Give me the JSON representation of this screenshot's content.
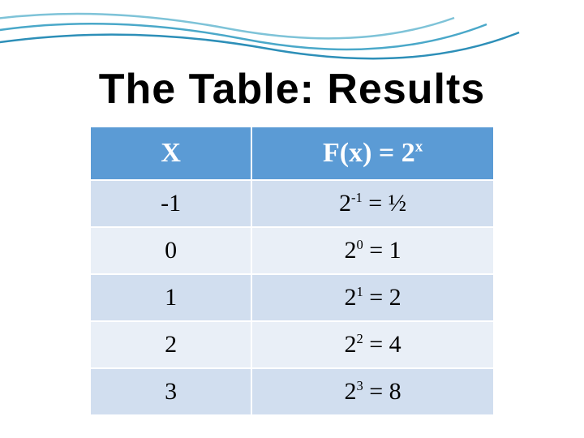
{
  "title": "The Table:  Results",
  "table": {
    "type": "table",
    "background_color": "#ffffff",
    "header_bg": "#5b9bd5",
    "header_fg": "#ffffff",
    "row_odd_bg": "#d1deef",
    "row_even_bg": "#e9eff7",
    "border_color": "#ffffff",
    "border_width": 2,
    "title_fontsize": 52,
    "header_fontsize": 34,
    "cell_fontsize": 30,
    "columns": [
      {
        "key": "X",
        "label": "X",
        "width_pct": 40
      },
      {
        "key": "Fx",
        "label_html": "F(x) = 2<sup>x</sup>",
        "width_pct": 60
      }
    ],
    "rows": [
      {
        "x": "-1",
        "fx_html": "2<sup>-1</sup> = ½"
      },
      {
        "x": "0",
        "fx_html": "2<sup>0</sup> = 1"
      },
      {
        "x": "1",
        "fx_html": "2<sup>1</sup> = 2"
      },
      {
        "x": "2",
        "fx_html": "2<sup>2</sup> = 4"
      },
      {
        "x": "3",
        "fx_html": "2<sup>3</sup> = 8"
      }
    ]
  },
  "decoration": {
    "wave_colors": [
      "#7ec3d8",
      "#4aa8c9",
      "#2d8fb8"
    ],
    "wave_stroke_width": 2
  }
}
